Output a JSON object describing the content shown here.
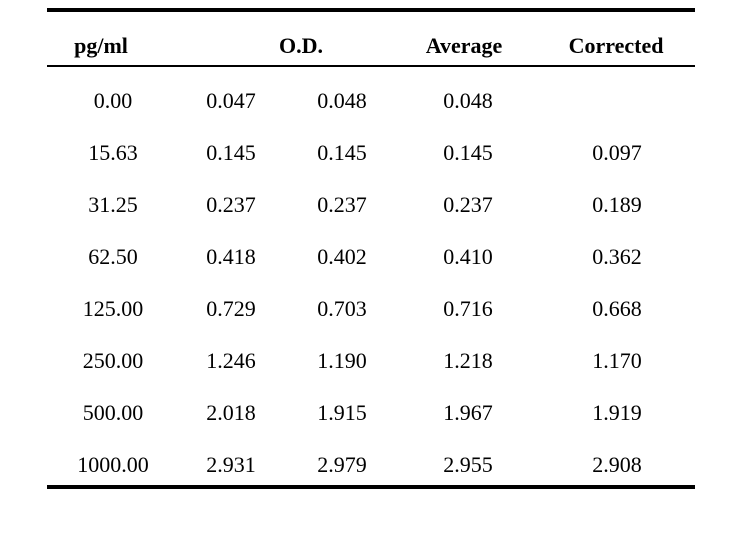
{
  "table": {
    "headers": {
      "concentration": "pg/ml",
      "od": "O.D.",
      "average": "Average",
      "corrected": "Corrected"
    },
    "rows": [
      [
        "0.00",
        "0.047",
        "0.048",
        "0.048",
        ""
      ],
      [
        "15.63",
        "0.145",
        "0.145",
        "0.145",
        "0.097"
      ],
      [
        "31.25",
        "0.237",
        "0.237",
        "0.237",
        "0.189"
      ],
      [
        "62.50",
        "0.418",
        "0.402",
        "0.410",
        "0.362"
      ],
      [
        "125.00",
        "0.729",
        "0.703",
        "0.716",
        "0.668"
      ],
      [
        "250.00",
        "1.246",
        "1.190",
        "1.218",
        "1.170"
      ],
      [
        "500.00",
        "2.018",
        "1.915",
        "1.967",
        "1.919"
      ],
      [
        "1000.00",
        "2.931",
        "2.979",
        "2.955",
        "2.908"
      ]
    ]
  }
}
